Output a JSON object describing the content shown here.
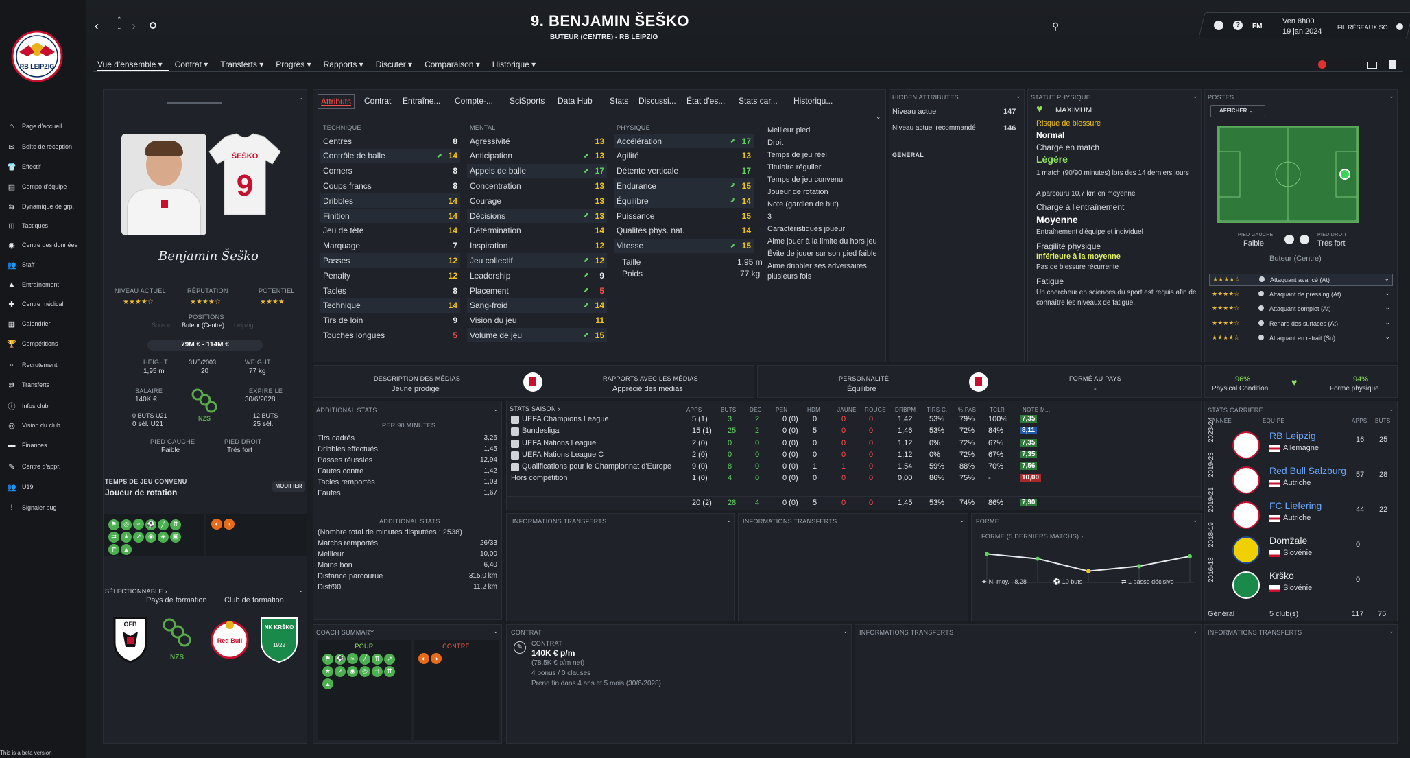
{
  "player": {
    "title": "9. BENJAMIN ŠEŠKO",
    "subtitle": "BUTEUR (CENTRE) - RB LEIPZIG",
    "club_crest": "RB LEIPZIG",
    "signature": "Benjamin Šeško",
    "shirt_name": "ŠEŠKO",
    "shirt_number": "9"
  },
  "topbar": {
    "fm": "FM",
    "date_time": "Ven 8h00",
    "date": "19 jan 2024",
    "social": "FIL RÉSEAUX SO..."
  },
  "menu": [
    "Vue d'ensemble ▾",
    "Contrat ▾",
    "Transferts ▾",
    "Progrès ▾",
    "Rapports ▾",
    "Discuter ▾",
    "Comparaison ▾",
    "Historique ▾"
  ],
  "sidebar": [
    "Page d'accueil",
    "Boîte de réception",
    "Effectif",
    "Compo d'équipe",
    "Dynamique de grp.",
    "Tactiques",
    "Centre des données",
    "Staff",
    "Entraînement",
    "Centre médical",
    "Calendrier",
    "Compétitions",
    "Recrutement",
    "Transferts",
    "Infos club",
    "Vision du club",
    "Finances",
    "Centre d'appr.",
    "U19",
    "Signaler bug"
  ],
  "beta": "This is a beta version",
  "tabs": [
    "Attributs",
    "Contrat",
    "Entraîne...",
    "Compte-...",
    "SciSports",
    "Data Hub",
    "Stats",
    "Discussi...",
    "État d'es...",
    "Stats car...",
    "Historiqu..."
  ],
  "profile": {
    "niveau_label": "NIVEAU ACTUEL",
    "rep_label": "RÉPUTATION",
    "pot_label": "POTENTIEL",
    "positions_label": "POSITIONS",
    "position": "Buteur (Centre)",
    "position_faded_left": "Sous c",
    "position_faded_right": "Leipzig",
    "value": "79M € - 114M €",
    "height_label": "HEIGHT",
    "height": "1,95 m",
    "dob": "31/5/2003",
    "age": "20",
    "weight_label": "WEIGHT",
    "weight": "77 kg",
    "salary_label": "SALAIRE",
    "salary": "140K €",
    "expire_label": "EXPIRE LE",
    "expire": "30/6/2028",
    "u21_goals": "0 BUTS U21",
    "u21_caps": "0 sél. U21",
    "caps_goals": "12 BUTS",
    "caps": "25 sél.",
    "left_foot_label": "PIED GAUCHE",
    "left_foot": "Faible",
    "right_foot_label": "PIED DROIT",
    "right_foot": "Très fort",
    "nat_badge": "NZS",
    "playing_time_label": "TEMPS DE JEU CONVENU",
    "playing_time": "Joueur de rotation",
    "modify": "MODIFIER",
    "selectable": "SÉLECTIONNABLE ›",
    "training_country": "Pays de formation",
    "training_club": "Club de formation",
    "ofb": "ÖFB",
    "nzs": "NZS",
    "redbull": "Red Bull",
    "krsko": "NK KRŠKO",
    "krsko_year": "1922"
  },
  "attributes": {
    "technique_label": "TECHNIQUE",
    "mental_label": "MENTAL",
    "physique_label": "PHYSIQUE",
    "technique": [
      [
        "Centres",
        "8"
      ],
      [
        "Contrôle de balle",
        "14"
      ],
      [
        "Corners",
        "8"
      ],
      [
        "Coups francs",
        "8"
      ],
      [
        "Dribbles",
        "14"
      ],
      [
        "Finition",
        "14"
      ],
      [
        "Jeu de tête",
        "14"
      ],
      [
        "Marquage",
        "7"
      ],
      [
        "Passes",
        "12"
      ],
      [
        "Penalty",
        "12"
      ],
      [
        "Tacles",
        "8"
      ],
      [
        "Technique",
        "14"
      ],
      [
        "Tirs de loin",
        "9"
      ],
      [
        "Touches longues",
        "5"
      ]
    ],
    "mental": [
      [
        "Agressivité",
        "13"
      ],
      [
        "Anticipation",
        "13"
      ],
      [
        "Appels de balle",
        "17"
      ],
      [
        "Concentration",
        "13"
      ],
      [
        "Courage",
        "13"
      ],
      [
        "Décisions",
        "13"
      ],
      [
        "Détermination",
        "14"
      ],
      [
        "Inspiration",
        "12"
      ],
      [
        "Jeu collectif",
        "12"
      ],
      [
        "Leadership",
        "9"
      ],
      [
        "Placement",
        "5"
      ],
      [
        "Sang-froid",
        "14"
      ],
      [
        "Vision du jeu",
        "11"
      ],
      [
        "Volume de jeu",
        "15"
      ]
    ],
    "physique": [
      [
        "Accélération",
        "17"
      ],
      [
        "Agilité",
        "13"
      ],
      [
        "Détente verticale",
        "17"
      ],
      [
        "Endurance",
        "15"
      ],
      [
        "Équilibre",
        "14"
      ],
      [
        "Puissance",
        "15"
      ],
      [
        "Qualités phys. nat.",
        "14"
      ],
      [
        "Vitesse",
        "15"
      ]
    ],
    "taille_label": "Taille",
    "taille": "1,95 m",
    "poids_label": "Poids",
    "poids": "77 kg"
  },
  "traits": [
    "Meilleur pied",
    "Droit",
    "Temps de jeu réel",
    "Titulaire régulier",
    "Temps de jeu convenu",
    "Joueur de rotation",
    "Note (gardien de but)",
    "3",
    "Caractéristiques joueur",
    "Aime jouer à la limite du hors jeu",
    "Évite de jouer sur son pied faible",
    "Aime dribbler ses adversaires plusieurs fois"
  ],
  "hidden": {
    "title": "HIDDEN ATTRIBUTES",
    "level_label": "Niveau actuel",
    "level": "147",
    "rec_label": "Niveau actuel recommandé",
    "rec": "146",
    "general": "GÉNÉRAL"
  },
  "physical": {
    "title": "STATUT PHYSIQUE",
    "max": "MAXIMUM",
    "injury_risk": "Risque de blessure",
    "injury_val": "Normal",
    "match_load": "Charge en match",
    "match_val": "Légère",
    "match_desc": "1 match (90/90 minutes) lors des 14 derniers jours",
    "match_desc2": "A parcouru 10,7 km en moyenne",
    "train_load": "Charge à l'entraînement",
    "train_val": "Moyenne",
    "train_desc": "Entraînement d'équipe et individuel",
    "fragility": "Fragilité physique",
    "frag_val": "Inférieure à la moyenne",
    "frag_desc": "Pas de blessure récurrente",
    "fatigue": "Fatigue",
    "fatigue_desc": "Un chercheur en sciences du sport est requis afin de connaître les niveaux de fatigue."
  },
  "positions": {
    "title": "POSTES",
    "show": "AFFICHER",
    "left_foot_label": "PIED GAUCHE",
    "left_foot": "Faible",
    "right_foot_label": "PIED DROIT",
    "right_foot": "Très fort",
    "role": "Buteur (Centre)",
    "roles": [
      "Attaquant avancé (At)",
      "Attaquant de pressing (At)",
      "Attaquant complet (At)",
      "Renard des surfaces (At)",
      "Attaquant en retrait (Su)"
    ]
  },
  "media": {
    "desc_label": "DESCRIPTION DES MÉDIAS",
    "desc": "Jeune prodige",
    "rel_label": "RAPPORTS AVEC LES MÉDIAS",
    "rel": "Apprécié des médias",
    "pers_label": "PERSONNALITÉ",
    "pers": "Équilibré",
    "form_label": "FORMÉ AU PAYS",
    "form": "-",
    "cond_pct": "96%",
    "cond_label": "Physical Condition",
    "shape_pct": "94%",
    "shape_label": "Forme physique"
  },
  "additional": {
    "title": "ADDITIONAL STATS",
    "per90": "PER 90 MINUTES",
    "rows": [
      [
        "Tirs cadrés",
        "3,26"
      ],
      [
        "Dribbles effectués",
        "1,45"
      ],
      [
        "Passes réussies",
        "12,94"
      ],
      [
        "Fautes contre",
        "1,42"
      ],
      [
        "Tacles remportés",
        "1,03"
      ],
      [
        "Fautes",
        "1,67"
      ]
    ],
    "title2": "ADDITIONAL STATS",
    "total": "(Nombre total de minutes disputées : 2538)",
    "rows2": [
      [
        "Matchs remportés",
        "26/33"
      ],
      [
        "Meilleur",
        "10,00"
      ],
      [
        "Moins bon",
        "6,40"
      ],
      [
        "Distance parcourue",
        "315,0 km"
      ],
      [
        "Dist/90",
        "11,2 km"
      ]
    ]
  },
  "season": {
    "title": "STATS SAISON ›",
    "headers": [
      "APPS",
      "BUTS",
      "DÉC",
      "PEN",
      "HDM",
      "JAUNE",
      "ROUGE",
      "DRBPM",
      "TIRS C.",
      "% PAS.",
      "TCLR",
      "NOTE M..."
    ],
    "rows": [
      [
        "UEFA Champions League",
        "5 (1)",
        "3",
        "2",
        "0 (0)",
        "0",
        "0",
        "0",
        "1,42",
        "53%",
        "79%",
        "100%",
        "7,35"
      ],
      [
        "Bundesliga",
        "15 (1)",
        "25",
        "2",
        "0 (0)",
        "5",
        "0",
        "0",
        "1,46",
        "53%",
        "72%",
        "84%",
        "8,11"
      ],
      [
        "UEFA Nations League",
        "2 (0)",
        "0",
        "0",
        "0 (0)",
        "0",
        "0",
        "0",
        "1,12",
        "0%",
        "72%",
        "67%",
        "7,35"
      ],
      [
        "UEFA Nations League C",
        "2 (0)",
        "0",
        "0",
        "0 (0)",
        "0",
        "0",
        "0",
        "1,12",
        "0%",
        "72%",
        "67%",
        "7,35"
      ],
      [
        "Qualifications pour le Championnat d'Europe",
        "9 (0)",
        "8",
        "0",
        "0 (0)",
        "1",
        "1",
        "0",
        "1,54",
        "59%",
        "88%",
        "70%",
        "7,56"
      ],
      [
        "Hors compétition",
        "1 (0)",
        "4",
        "0",
        "0 (0)",
        "0",
        "0",
        "0",
        "0,00",
        "86%",
        "75%",
        "-",
        "10,00"
      ]
    ],
    "total": [
      "20 (2)",
      "28",
      "4",
      "0 (0)",
      "5",
      "0",
      "0",
      "1,45",
      "53%",
      "74%",
      "86%",
      "7,90"
    ]
  },
  "transfers": {
    "info1": "INFORMATIONS TRANSFERTS",
    "info2": "INFORMATIONS TRANSFERTS",
    "info3": "INFORMATIONS TRANSFERTS",
    "info4": "INFORMATIONS TRANSFERTS"
  },
  "form": {
    "title": "FORME",
    "subtitle": "FORME (5 DERNIERS MATCHS) ›",
    "avg": "N. moy. : 8,28",
    "goals": "10 buts",
    "assists": "1 passe décisive",
    "values": [
      8.6,
      8.4,
      7.9,
      8.1,
      8.5
    ]
  },
  "career": {
    "title": "STATS CARRIÈRE",
    "headers": [
      "ANNÉE",
      "ÉQUIPE",
      "APPS",
      "BUTS"
    ],
    "rows": [
      [
        "2023-24",
        "RB Leipzig",
        "Allemagne",
        "16",
        "25"
      ],
      [
        "2019-23",
        "Red Bull Salzburg",
        "Autriche",
        "57",
        "28"
      ],
      [
        "2019-21",
        "FC Liefering",
        "Autriche",
        "44",
        "22"
      ],
      [
        "2018-19",
        "Domžale",
        "Slovénie",
        "0",
        ""
      ],
      [
        "2016-18",
        "Krško",
        "Slovénie",
        "0",
        ""
      ]
    ],
    "total_label": "Général",
    "total_clubs": "5 club(s)",
    "total_apps": "117",
    "total_goals": "75"
  },
  "coach": {
    "title": "COACH SUMMARY",
    "pour": "POUR",
    "contre": "CONTRE"
  },
  "contract": {
    "title": "CONTRAT",
    "label": "CONTRAT",
    "amount": "140K € p/m",
    "net": "(78,5K € p/m net)",
    "clauses": "4 bonus / 0 clauses",
    "end": "Prend fin dans 4 ans et 5 mois (30/6/2028)"
  },
  "colors": {
    "accent": "#e0312c",
    "green": "#5fd35f",
    "yellow": "#f0c419",
    "red": "#ff4b4b"
  }
}
